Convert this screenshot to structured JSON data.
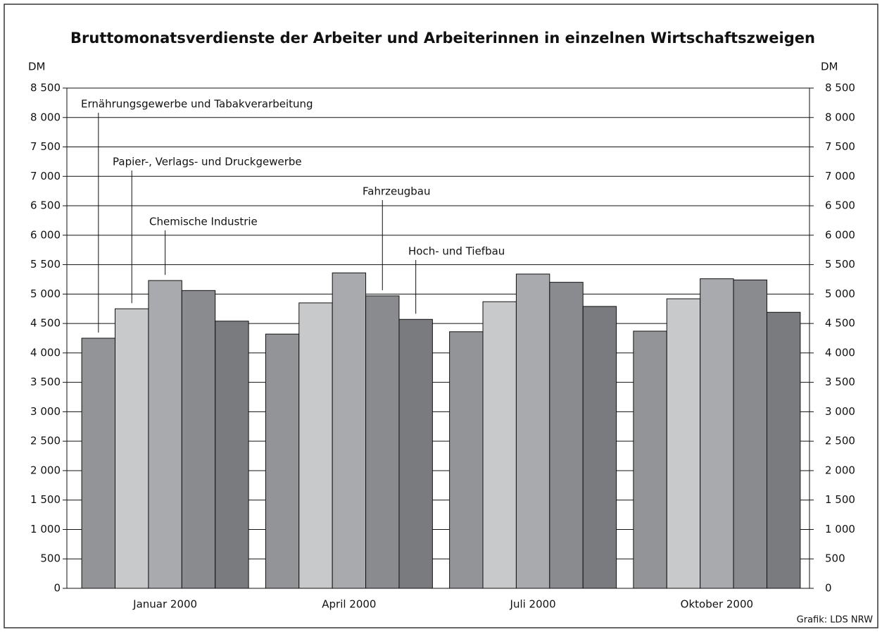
{
  "chart_data": {
    "type": "bar",
    "title": "Bruttomonatsverdienste der Arbeiter und Arbeiterinnen in einzelnen Wirtschaftszweigen",
    "y_label": "DM",
    "y2_label": "DM",
    "source": "Grafik: LDS NRW",
    "categories": [
      "Januar 2000",
      "April 2000",
      "Juli 2000",
      "Oktober 2000"
    ],
    "series": [
      {
        "name": "Ernährungsgewerbe und Tabakverarbeitung",
        "color": "#939498",
        "values": [
          4250,
          4320,
          4360,
          4370
        ]
      },
      {
        "name": "Papier-, Verlags- und Druckgewerbe",
        "color": "#c8c9cb",
        "values": [
          4750,
          4850,
          4870,
          4920
        ]
      },
      {
        "name": "Chemische Industrie",
        "color": "#a9aaad",
        "values": [
          5230,
          5360,
          5340,
          5260
        ]
      },
      {
        "name": "Fahrzeugbau",
        "color": "#8a8b8e",
        "values": [
          5060,
          4970,
          5200,
          5240
        ]
      },
      {
        "name": "Hoch- und Tiefbau",
        "color": "#7a7b7e",
        "values": [
          4540,
          4570,
          4790,
          4690
        ]
      }
    ],
    "ylim": [
      0,
      8500
    ],
    "yticks": [
      0,
      500,
      {
        "value": 1000,
        "label": "1 000"
      },
      {
        "value": 1500,
        "label": "1 500"
      },
      {
        "value": 2000,
        "label": "2 000"
      },
      {
        "value": 2500,
        "label": "2 500"
      },
      {
        "value": 3000,
        "label": "3 000"
      },
      {
        "value": 3500,
        "label": "3 500"
      },
      {
        "value": 4000,
        "label": "4 000"
      },
      {
        "value": 4500,
        "label": "4 500"
      },
      {
        "value": 5000,
        "label": "5 000"
      },
      {
        "value": 5500,
        "label": "5 500"
      },
      {
        "value": 6000,
        "label": "6 000"
      },
      {
        "value": 6500,
        "label": "6 500"
      },
      {
        "value": 7000,
        "label": "7 000"
      },
      {
        "value": 7500,
        "label": "7 500"
      },
      {
        "value": 8000,
        "label": "8 000"
      },
      {
        "value": 8500,
        "label": "8 500"
      }
    ],
    "y2lim": [
      0,
      8500
    ],
    "y2ticks": [
      0,
      500,
      {
        "value": 1000,
        "label": "1 000"
      },
      {
        "value": 1500,
        "label": "1 500"
      },
      {
        "value": 2000,
        "label": "2 000"
      },
      {
        "value": 2500,
        "label": "2 500"
      },
      {
        "value": 3000,
        "label": "3 000"
      },
      {
        "value": 3500,
        "label": "3 500"
      },
      {
        "value": 4000,
        "label": "4 000"
      },
      {
        "value": 4500,
        "label": "4 500"
      },
      {
        "value": 5000,
        "label": "5 000"
      },
      {
        "value": 5500,
        "label": "5 500"
      },
      {
        "value": 6000,
        "label": "6 000"
      },
      {
        "value": 6500,
        "label": "6 500"
      },
      {
        "value": 7000,
        "label": "7 000"
      },
      {
        "value": 7500,
        "label": "7 500"
      },
      {
        "value": 8000,
        "label": "8 000"
      },
      {
        "value": 8500,
        "label": "8 500"
      }
    ],
    "grid": true
  }
}
